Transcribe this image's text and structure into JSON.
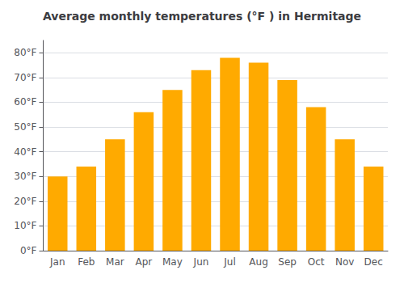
{
  "chart_data": {
    "type": "bar",
    "title": "Average monthly temperatures (°F ) in Hermitage",
    "categories": [
      "Jan",
      "Feb",
      "Mar",
      "Apr",
      "May",
      "Jun",
      "Jul",
      "Aug",
      "Sep",
      "Oct",
      "Nov",
      "Dec"
    ],
    "values": [
      30,
      34,
      45,
      56,
      65,
      73,
      78,
      76,
      69,
      58,
      45,
      34
    ],
    "color": "#FFAA00",
    "ylim": [
      0,
      85
    ],
    "yticks": [
      {
        "value": 0,
        "label": "0°F"
      },
      {
        "value": 10,
        "label": "10°F"
      },
      {
        "value": 20,
        "label": "20°F"
      },
      {
        "value": 30,
        "label": "30°F"
      },
      {
        "value": 40,
        "label": "40°F"
      },
      {
        "value": 50,
        "label": "50°F"
      },
      {
        "value": 60,
        "label": "60°F"
      },
      {
        "value": 70,
        "label": "70°F"
      },
      {
        "value": 80,
        "label": "80°F"
      }
    ],
    "grid": true
  }
}
